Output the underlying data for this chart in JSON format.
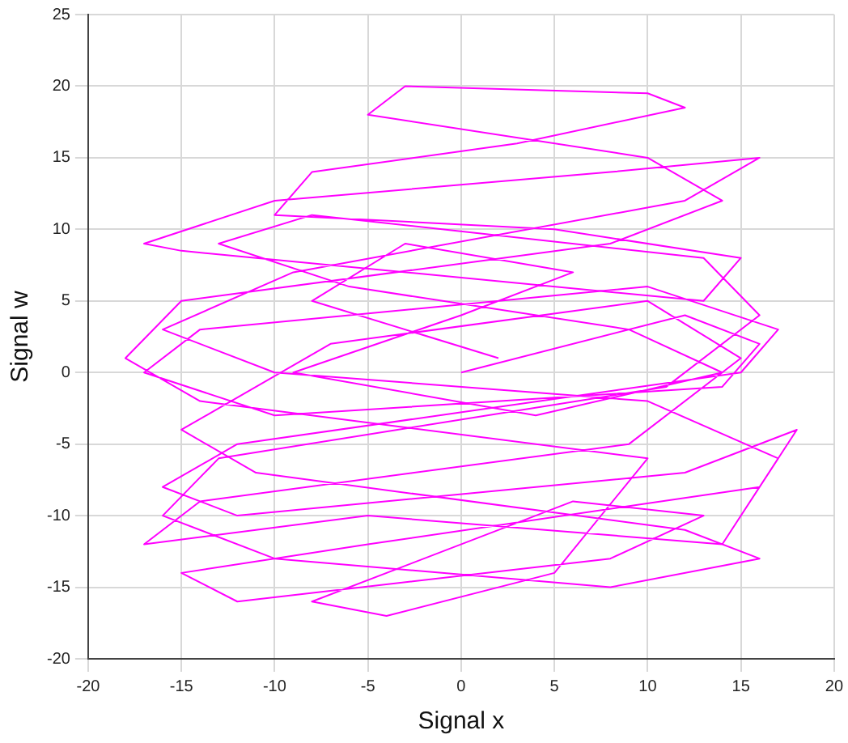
{
  "chart_data": {
    "type": "line",
    "xlabel": "Signal x",
    "ylabel": "Signal w",
    "x": [
      0,
      12,
      16,
      14,
      -10,
      -17,
      -14,
      10,
      17,
      15,
      -12,
      -16,
      -12,
      12,
      18,
      16,
      -5,
      -15,
      -12,
      8,
      13,
      6,
      -8,
      -4,
      5,
      10,
      -14,
      -18,
      -15,
      8,
      14,
      10,
      -5,
      -3,
      10,
      12,
      3,
      -8,
      -10,
      5,
      15,
      13,
      -15,
      -17,
      -10,
      8,
      16,
      12,
      -9,
      -16,
      -10,
      10,
      17,
      14,
      -5,
      -17,
      -14,
      9,
      15,
      10,
      -7,
      -15,
      -11,
      12,
      16,
      8,
      -10,
      -16,
      -13,
      11,
      16,
      13,
      -8,
      -13,
      -6,
      9,
      14,
      4,
      -9,
      0,
      6,
      -3,
      -8,
      2
    ],
    "series": [
      {
        "color": "#ff00ff",
        "values": [
          0,
          4,
          2,
          -1,
          -3,
          0,
          3,
          6,
          3,
          0,
          -5,
          -8,
          -10,
          -7,
          -4,
          -8,
          -12,
          -14,
          -16,
          -13,
          -10,
          -9,
          -16,
          -17,
          -14,
          -6,
          -2,
          1,
          5,
          9,
          12,
          15,
          18,
          20,
          19.5,
          18.5,
          16,
          14,
          11,
          10,
          8,
          5,
          8.5,
          9,
          12,
          14,
          15,
          12,
          7,
          3,
          0,
          -2,
          -6,
          -12,
          -10,
          -12,
          -9,
          -5,
          1,
          5,
          2,
          -4,
          -7,
          -11,
          -13,
          -15,
          -13,
          -10,
          -6,
          -1,
          4,
          8,
          11,
          9,
          6,
          3,
          0,
          -3,
          0,
          4,
          7,
          9,
          5,
          1
        ]
      }
    ],
    "xlim": [
      -20,
      20
    ],
    "xticks": [
      -20,
      -15,
      -10,
      -5,
      0,
      5,
      10,
      15,
      20
    ],
    "ylim": [
      -20,
      25
    ],
    "yticks": [
      -20,
      -15,
      -10,
      -5,
      0,
      5,
      10,
      15,
      20,
      25
    ],
    "grid": true,
    "marker": "none",
    "line_style": "solid",
    "legend": false
  }
}
